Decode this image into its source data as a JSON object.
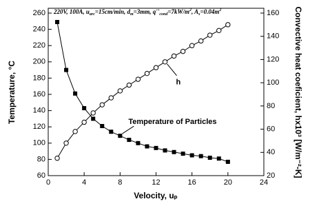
{
  "chart_data": {
    "type": "line",
    "annotation_parts": [
      "220V, 100A, u",
      "arc",
      "=15cm/min, d",
      "m",
      "=3mm, q''",
      "cond",
      "=7kW/m",
      "2",
      ", A",
      "s",
      "=0.04m",
      "2"
    ],
    "xlabel": "Velocity, uₚ",
    "ylabel": "Temperature, °C",
    "y2label": "Convective heat coeficient, hx10³ [W/m⁻²-K]",
    "x": [
      1,
      2,
      3,
      4,
      5,
      6,
      7,
      8,
      9,
      10,
      11,
      12,
      13,
      14,
      15,
      16,
      17,
      18,
      19,
      20
    ],
    "series": [
      {
        "name": "Temperature of Particles",
        "color": "#000000",
        "marker": "square",
        "values": [
          249,
          190,
          161,
          143,
          130,
          121,
          114,
          109,
          104,
          100,
          96,
          94,
          91,
          89,
          87,
          85,
          84,
          82,
          81,
          77
        ]
      },
      {
        "name": "h",
        "color": "#000000",
        "marker": "circle",
        "axis": "y2",
        "values": [
          35,
          48,
          58,
          66,
          74,
          81,
          87,
          93,
          98,
          103,
          108,
          113,
          118,
          123,
          127,
          132,
          136,
          141,
          145,
          150
        ]
      }
    ],
    "xlim": [
      0,
      24
    ],
    "xticks": [
      0,
      4,
      8,
      12,
      16,
      20,
      24
    ],
    "ylim": [
      60,
      260
    ],
    "yticks": [
      60,
      80,
      100,
      120,
      140,
      160,
      180,
      200,
      220,
      240,
      260
    ],
    "y2lim": [
      20,
      160
    ],
    "y2ticks": [
      20,
      40,
      60,
      80,
      100,
      120,
      140,
      160
    ]
  }
}
